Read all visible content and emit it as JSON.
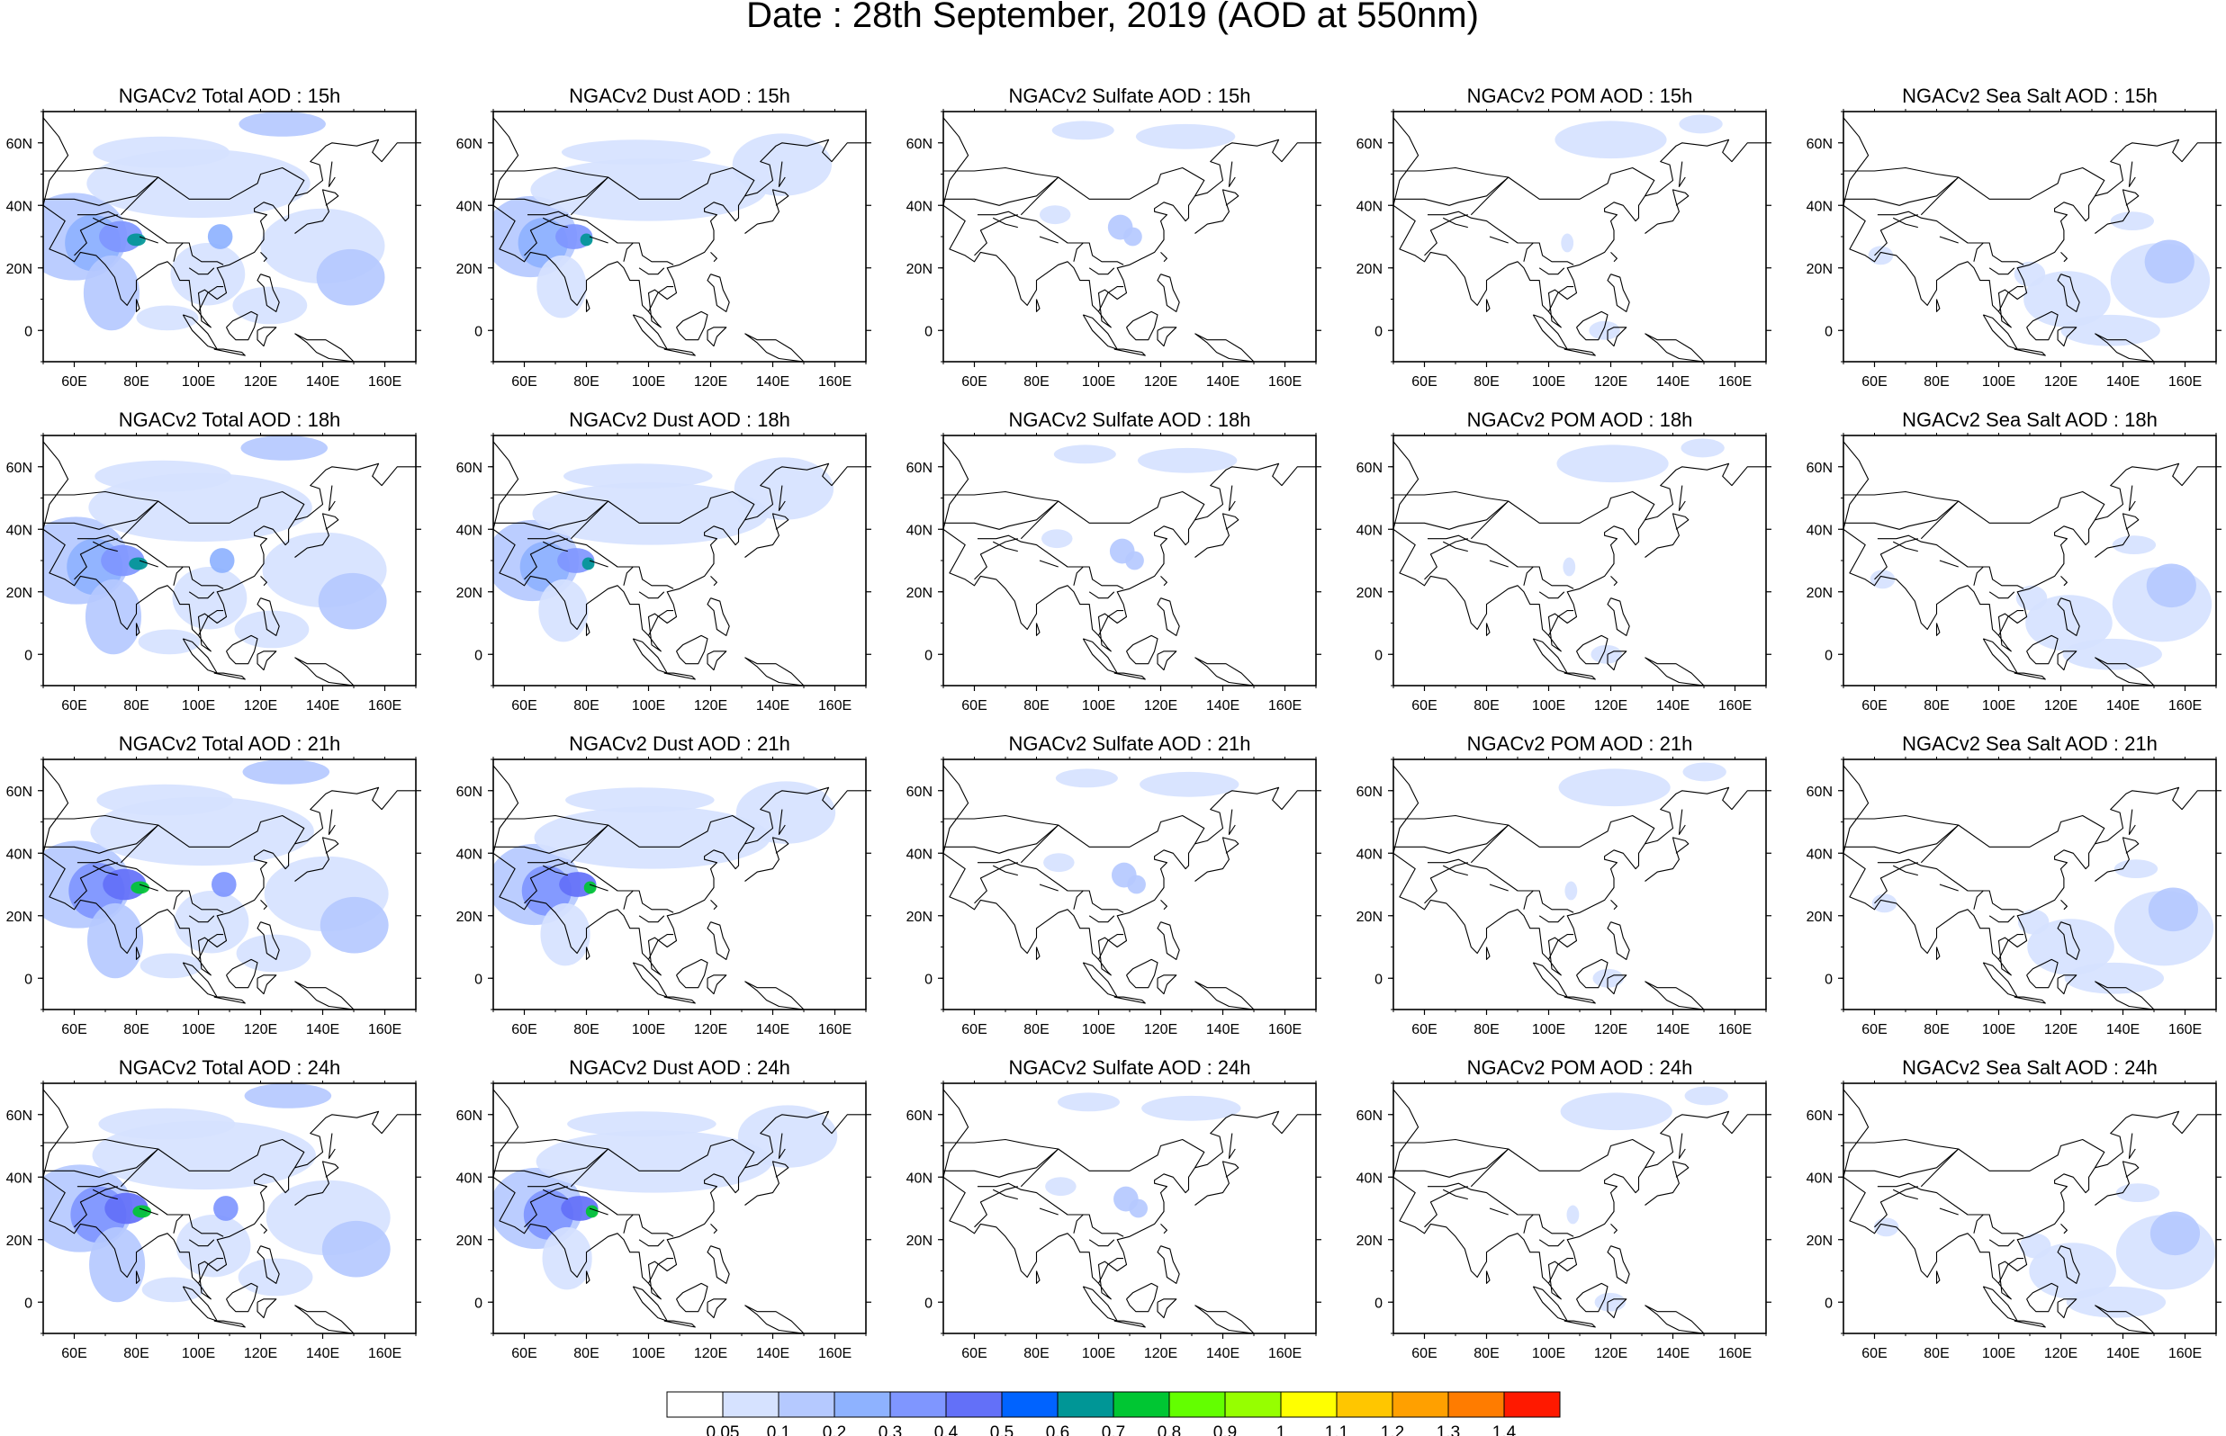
{
  "title": "Date : 28th September, 2019 (AOD at 550nm)",
  "panel_rows": [
    [
      "NGACv2 Total AOD : 15h",
      "NGACv2 Dust AOD : 15h",
      "NGACv2 Sulfate AOD : 15h",
      "NGACv2 POM AOD : 15h",
      "NGACv2 Sea Salt AOD : 15h"
    ],
    [
      "NGACv2 Total AOD : 18h",
      "NGACv2 Dust AOD : 18h",
      "NGACv2 Sulfate AOD : 18h",
      "NGACv2 POM AOD : 18h",
      "NGACv2 Sea Salt AOD : 18h"
    ],
    [
      "NGACv2 Total AOD : 21h",
      "NGACv2 Dust AOD : 21h",
      "NGACv2 Sulfate AOD : 21h",
      "NGACv2 POM AOD : 21h",
      "NGACv2 Sea Salt AOD : 21h"
    ],
    [
      "NGACv2 Total AOD : 24h",
      "NGACv2 Dust AOD : 24h",
      "NGACv2 Sulfate AOD : 24h",
      "NGACv2 POM AOD : 24h",
      "NGACv2 Sea Salt  AOD : 24h"
    ]
  ],
  "map_extent": {
    "lon": [
      50,
      170
    ],
    "lat": [
      -10,
      70
    ]
  },
  "lon_ticks": [
    "60E",
    "80E",
    "100E",
    "120E",
    "140E",
    "160E"
  ],
  "lat_ticks": [
    "60N",
    "40N",
    "20N",
    "0"
  ],
  "colorbar": {
    "labels": [
      "0.05",
      "0.1",
      "0.2",
      "0.3",
      "0.4",
      "0.5",
      "0.6",
      "0.7",
      "0.8",
      "0.9",
      "1",
      "1.1",
      "1.2",
      "1.3",
      "1.4"
    ],
    "colors": [
      "#ffffff",
      "#d6e2ff",
      "#b5c9ff",
      "#8eb2ff",
      "#7f96ff",
      "#6370f8",
      "#0063ff",
      "#009696",
      "#00c633",
      "#63ff00",
      "#96ff00",
      "#ffff00",
      "#ffc600",
      "#ffa000",
      "#ff7c00",
      "#ff1900"
    ]
  }
}
